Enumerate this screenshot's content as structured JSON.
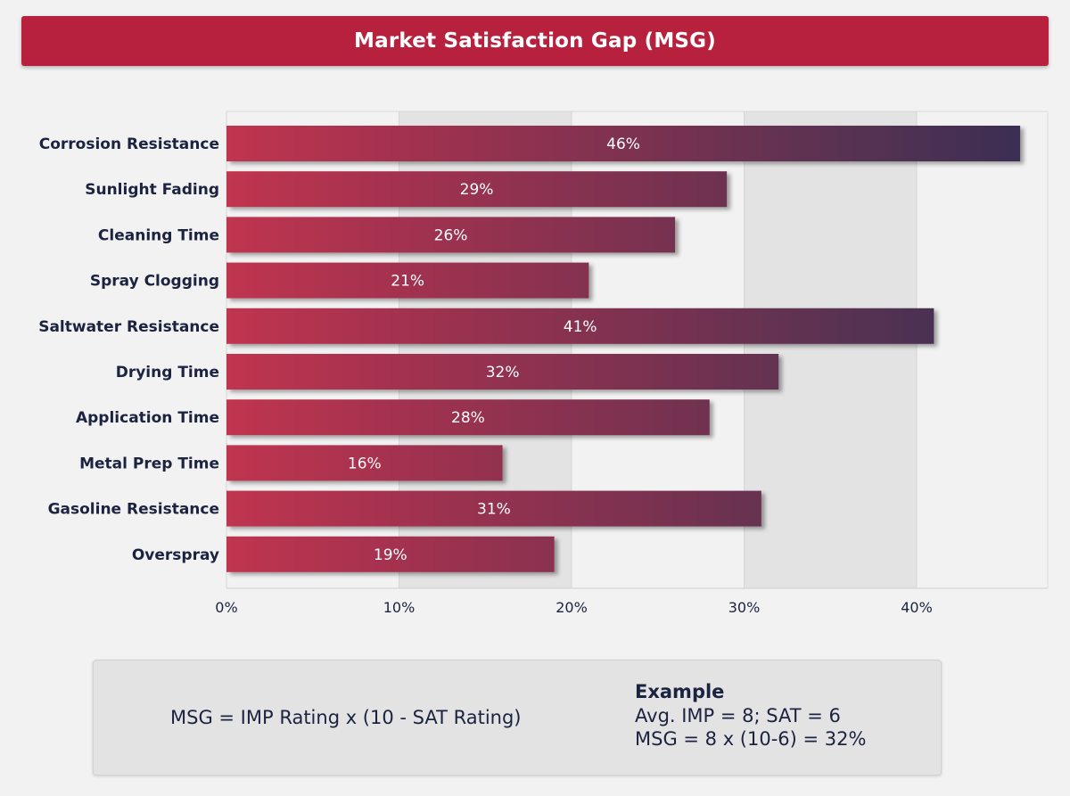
{
  "title": "Market Satisfaction Gap (MSG)",
  "chart_data": {
    "type": "bar",
    "orientation": "horizontal",
    "title": "Market Satisfaction Gap (MSG)",
    "categories": [
      "Corrosion Resistance",
      "Sunlight Fading",
      "Cleaning Time",
      "Spray Clogging",
      "Saltwater Resistance",
      "Drying Time",
      "Application Time",
      "Metal Prep Time",
      "Gasoline Resistance",
      "Overspray"
    ],
    "values": [
      46,
      29,
      26,
      21,
      41,
      32,
      28,
      16,
      31,
      19
    ],
    "value_labels": [
      "46%",
      "29%",
      "26%",
      "21%",
      "41%",
      "32%",
      "28%",
      "16%",
      "31%",
      "19%"
    ],
    "xlim": [
      0,
      47
    ],
    "xticks": [
      0,
      10,
      20,
      30,
      40
    ],
    "xtick_labels": [
      "0%",
      "10%",
      "20%",
      "30%",
      "40%"
    ],
    "xlabel": "",
    "ylabel": "",
    "colors": {
      "bar_start": "#c0344f",
      "bar_end": "#3c2f52",
      "band": "#e3e3e3",
      "text": "#1b2340",
      "title_bg": "#b8213d"
    }
  },
  "formula_box": {
    "formula": "MSG = IMP Rating x (10 - SAT Rating)",
    "example_title": "Example",
    "example_line1": "Avg. IMP = 8; SAT = 6",
    "example_line2": "MSG = 8 x (10-6) = 32%"
  }
}
